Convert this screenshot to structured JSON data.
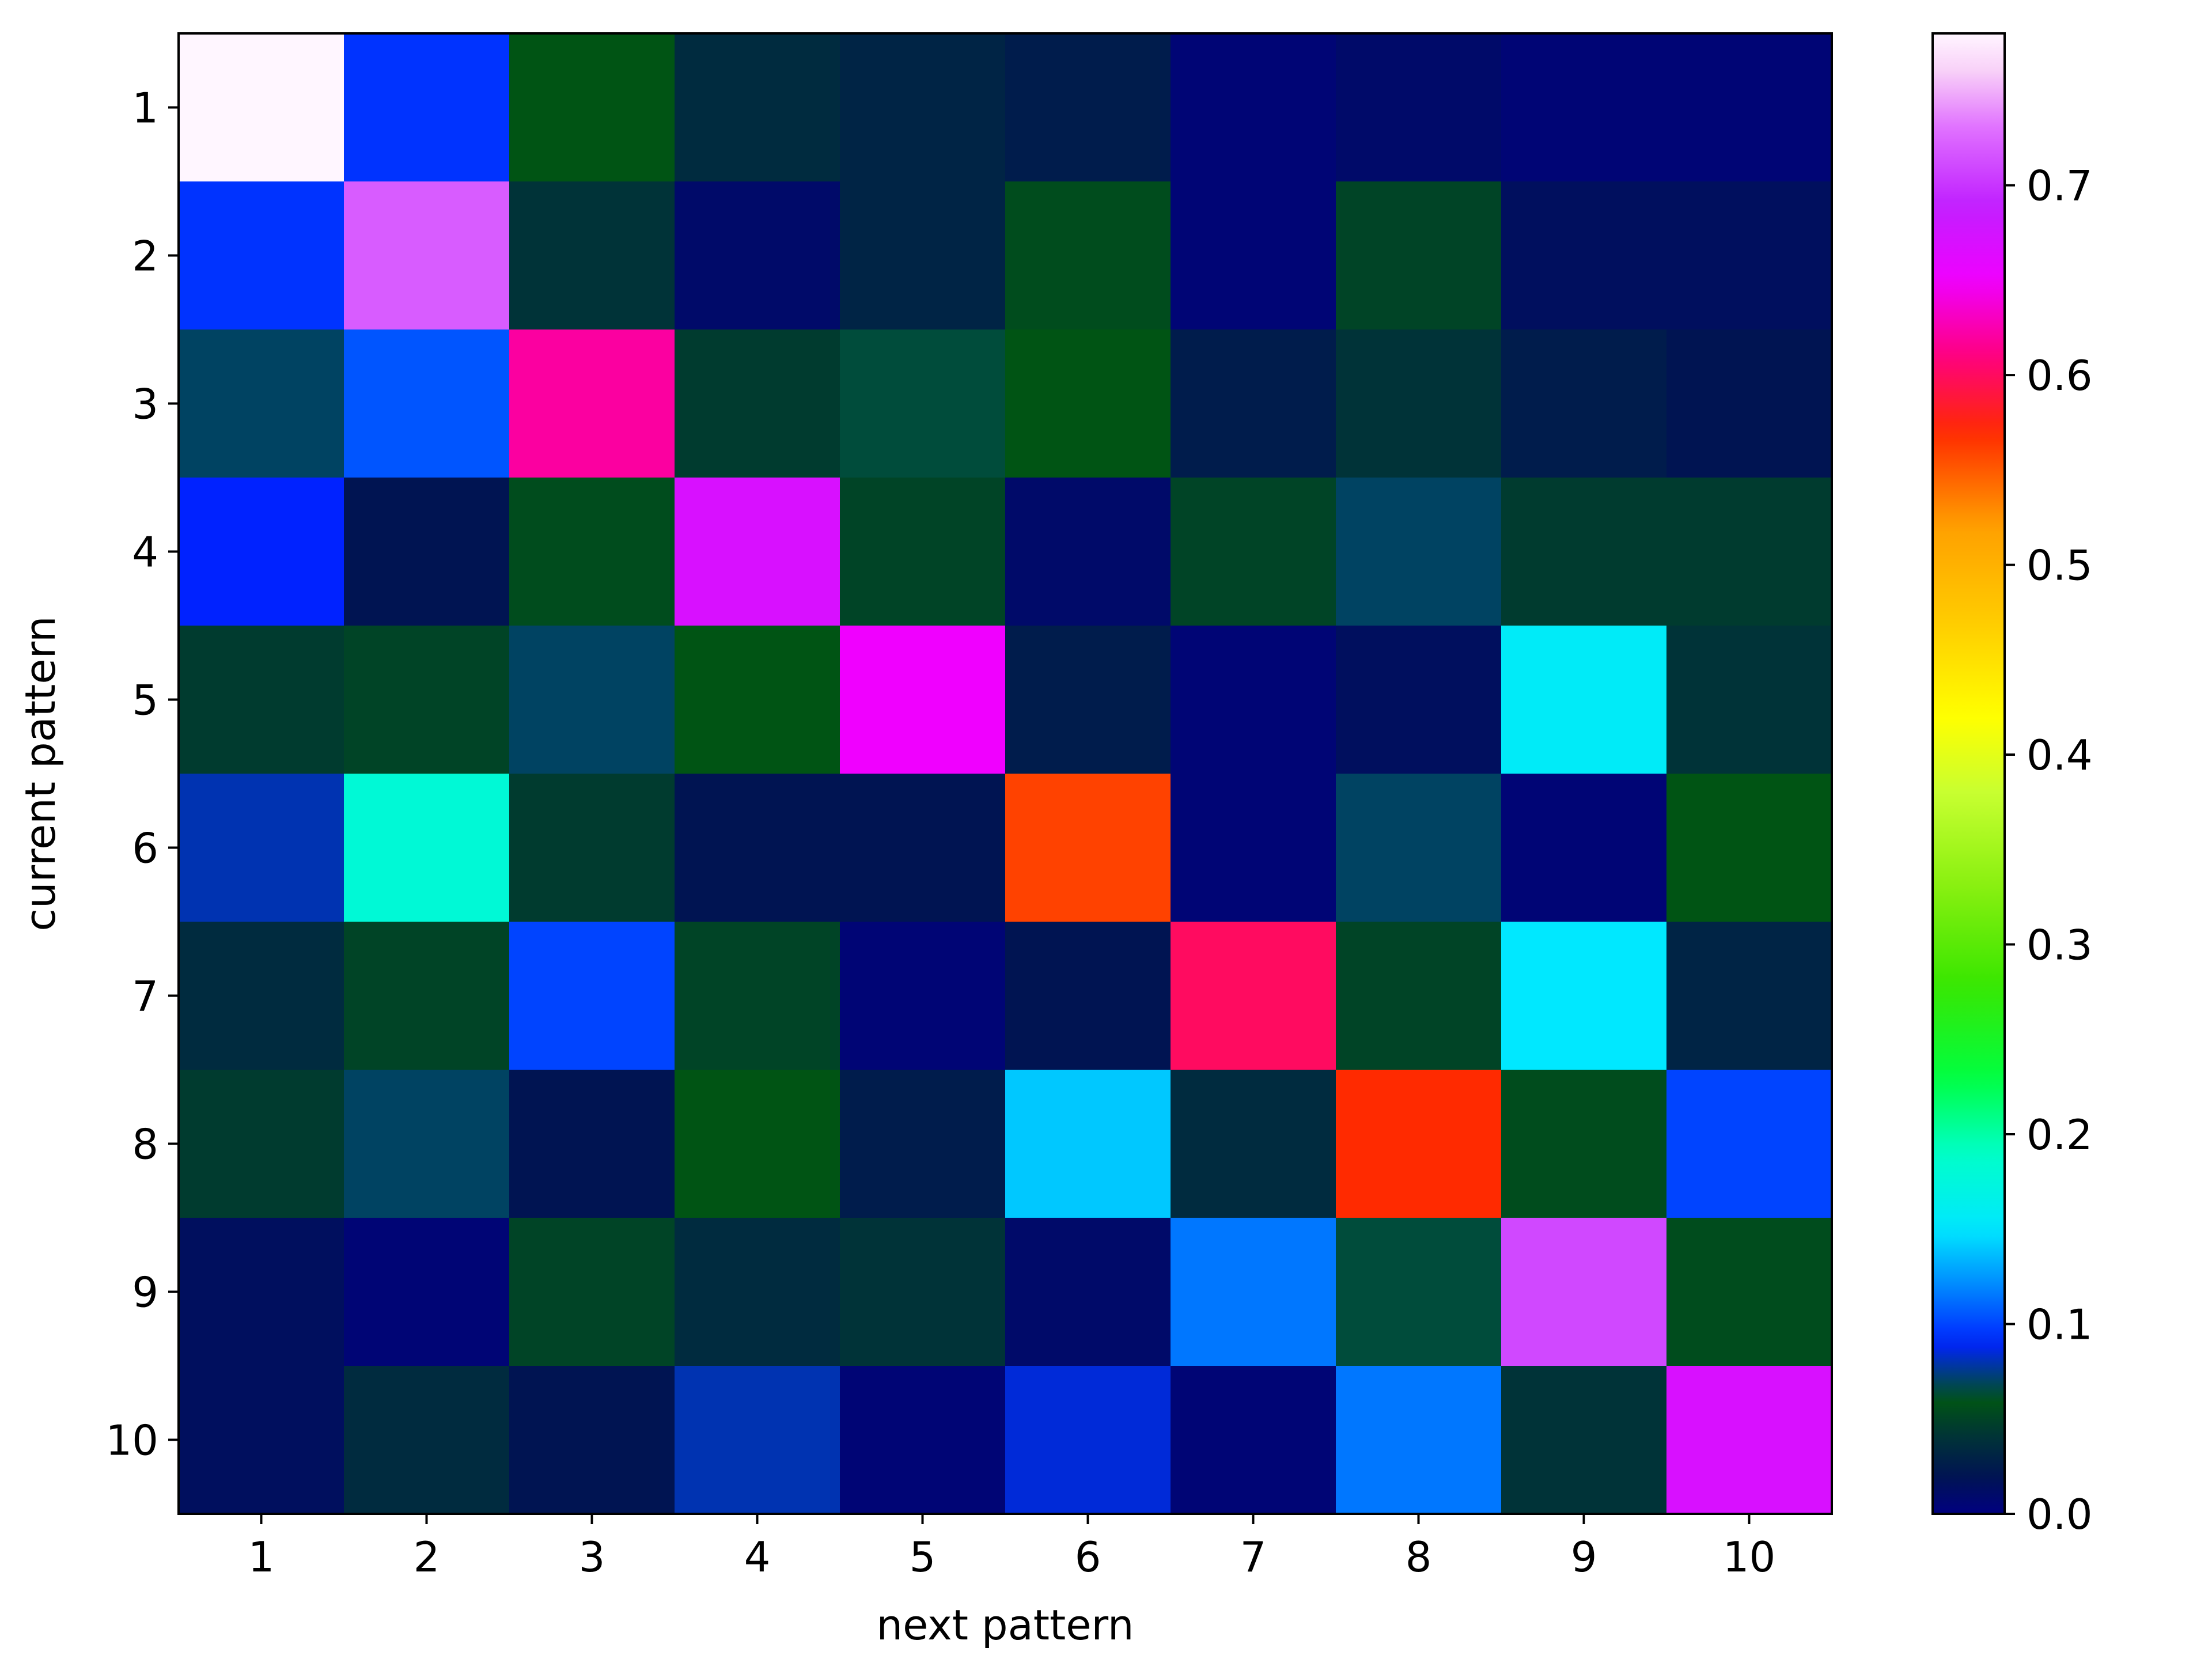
{
  "chart_data": {
    "type": "heatmap",
    "title": "",
    "xlabel": "next pattern",
    "ylabel": "current pattern",
    "x_categories": [
      "1",
      "2",
      "3",
      "4",
      "5",
      "6",
      "7",
      "8",
      "9",
      "10"
    ],
    "y_categories": [
      "1",
      "2",
      "3",
      "4",
      "5",
      "6",
      "7",
      "8",
      "9",
      "10"
    ],
    "values": [
      [
        0.78,
        0.095,
        0.06,
        0.035,
        0.03,
        0.025,
        0.005,
        0.01,
        0.005,
        0.005
      ],
      [
        0.095,
        0.72,
        0.04,
        0.01,
        0.03,
        0.055,
        0.005,
        0.05,
        0.015,
        0.015
      ],
      [
        0.07,
        0.105,
        0.62,
        0.045,
        0.065,
        0.06,
        0.025,
        0.04,
        0.025,
        0.02
      ],
      [
        0.09,
        0.02,
        0.055,
        0.67,
        0.05,
        0.01,
        0.05,
        0.07,
        0.045,
        0.045
      ],
      [
        0.045,
        0.05,
        0.07,
        0.06,
        0.65,
        0.025,
        0.005,
        0.015,
        0.155,
        0.04
      ],
      [
        0.08,
        0.18,
        0.045,
        0.02,
        0.02,
        0.56,
        0.005,
        0.07,
        0.005,
        0.06
      ],
      [
        0.035,
        0.05,
        0.1,
        0.05,
        0.005,
        0.02,
        0.6,
        0.05,
        0.15,
        0.03
      ],
      [
        0.045,
        0.07,
        0.02,
        0.06,
        0.025,
        0.14,
        0.035,
        0.57,
        0.055,
        0.1
      ],
      [
        0.015,
        0.005,
        0.05,
        0.035,
        0.04,
        0.01,
        0.115,
        0.065,
        0.71,
        0.055
      ],
      [
        0.015,
        0.035,
        0.02,
        0.08,
        0.005,
        0.085,
        0.005,
        0.115,
        0.04,
        0.67
      ]
    ],
    "colorbar": {
      "colormap": "gist_ncar",
      "range": [
        0.0,
        0.78
      ],
      "ticks": [
        0.0,
        0.1,
        0.2,
        0.3,
        0.4,
        0.5,
        0.6,
        0.7
      ],
      "tick_labels": [
        "0.0",
        "0.1",
        "0.2",
        "0.3",
        "0.4",
        "0.5",
        "0.6",
        "0.7"
      ]
    },
    "grid": false
  }
}
